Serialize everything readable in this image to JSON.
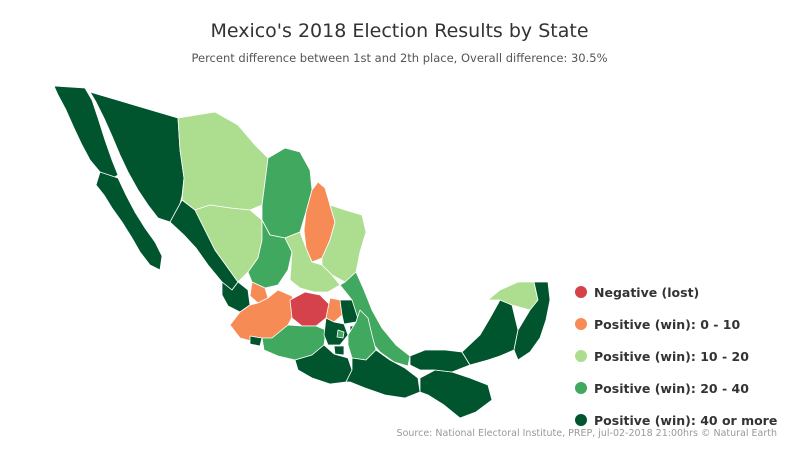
{
  "title": "Mexico's 2018 Election Results by State",
  "subtitle": "Percent difference between 1st and 2th place, Overall difference: 30.5%",
  "source": "Source: National Electoral Institute, PREP, jul-02-2018 21:00hrs © Natural Earth",
  "colors": {
    "negative": "#d6424b",
    "c0_10": "#f68b56",
    "c10_20": "#addd8e",
    "c20_40": "#41a85f",
    "c40_plus": "#00552e"
  },
  "legend": [
    {
      "label": "Negative (lost)",
      "color": "#d6424b"
    },
    {
      "label": "Positive (win): 0 - 10",
      "color": "#f68b56"
    },
    {
      "label": "Positive (win): 10 - 20",
      "color": "#addd8e"
    },
    {
      "label": "Positive (win): 20 - 40",
      "color": "#41a85f"
    },
    {
      "label": "Positive (win): 40 or more",
      "color": "#00552e"
    }
  ]
}
